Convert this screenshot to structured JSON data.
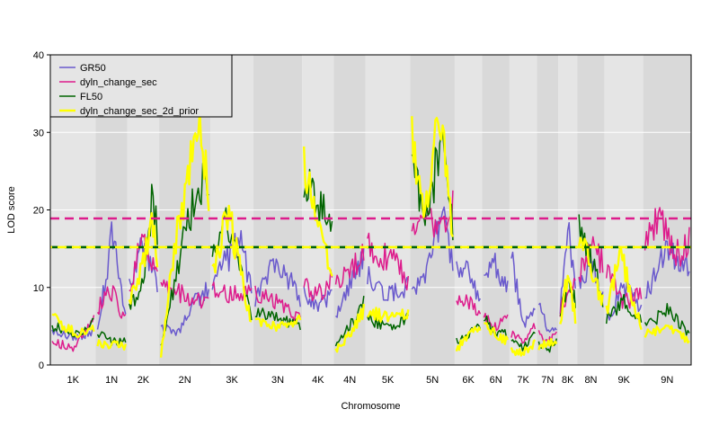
{
  "chart_data": {
    "type": "line",
    "title": "",
    "xlabel": "Chromosome",
    "ylabel": "LOD score",
    "ylim": [
      0,
      40
    ],
    "yticks": [
      0,
      10,
      20,
      30,
      40
    ],
    "grid": true,
    "legend_position": "top-left",
    "chromosomes": [
      "1K",
      "1N",
      "2K",
      "2N",
      "3K",
      "3N",
      "4K",
      "4N",
      "5K",
      "5N",
      "6K",
      "6N",
      "7K",
      "7N",
      "8K",
      "8N",
      "9K",
      "9N"
    ],
    "chromosome_widths": [
      53,
      37,
      37,
      60,
      50,
      57,
      37,
      37,
      52,
      52,
      32,
      32,
      32,
      25,
      22,
      32,
      45,
      56
    ],
    "thresholds": [
      {
        "series": "dyln_change_sec",
        "value": 18.9,
        "color": "#dd1c8c"
      },
      {
        "series": "FL50",
        "value": 15.2,
        "color": "#006400"
      },
      {
        "series": "dyln_change_sec_2d_prior",
        "value": 15.2,
        "color": "#ffff00"
      }
    ],
    "series": [
      {
        "name": "GR50",
        "color": "#6a5acd",
        "points": [
          [
            "1K",
            0,
            4.5
          ],
          [
            "1K",
            0.5,
            3.5
          ],
          [
            "1K",
            1,
            4.2
          ],
          [
            "1N",
            0,
            5
          ],
          [
            "1N",
            0.25,
            10
          ],
          [
            "1N",
            0.5,
            17
          ],
          [
            "1N",
            0.75,
            12
          ],
          [
            "1N",
            1,
            6
          ],
          [
            "2K",
            0,
            10
          ],
          [
            "2K",
            0.3,
            14
          ],
          [
            "2K",
            0.6,
            15.5
          ],
          [
            "2K",
            1,
            10
          ],
          [
            "2N",
            0,
            5
          ],
          [
            "2N",
            0.35,
            4
          ],
          [
            "2N",
            0.7,
            8
          ],
          [
            "2N",
            1,
            10
          ],
          [
            "3K",
            0,
            10
          ],
          [
            "3K",
            0.3,
            13
          ],
          [
            "3K",
            0.7,
            16
          ],
          [
            "3K",
            1,
            10
          ],
          [
            "3N",
            0,
            8
          ],
          [
            "3N",
            0.4,
            13
          ],
          [
            "3N",
            0.8,
            11
          ],
          [
            "3N",
            1,
            8
          ],
          [
            "4K",
            0,
            9
          ],
          [
            "4K",
            0.5,
            8
          ],
          [
            "4K",
            1,
            9
          ],
          [
            "4N",
            0,
            6
          ],
          [
            "4N",
            0.5,
            10
          ],
          [
            "4N",
            1,
            14
          ],
          [
            "5K",
            0,
            12
          ],
          [
            "5K",
            0.5,
            9
          ],
          [
            "5K",
            1,
            10
          ],
          [
            "5N",
            0,
            9
          ],
          [
            "5N",
            0.3,
            11
          ],
          [
            "5N",
            0.5,
            16
          ],
          [
            "5N",
            0.8,
            21
          ],
          [
            "5N",
            1,
            12
          ],
          [
            "6K",
            0,
            13
          ],
          [
            "6K",
            0.5,
            12
          ],
          [
            "6K",
            1,
            8
          ],
          [
            "6N",
            0,
            11
          ],
          [
            "6N",
            0.5,
            13
          ],
          [
            "6N",
            1,
            10
          ],
          [
            "7K",
            0,
            14
          ],
          [
            "7K",
            0.5,
            5
          ],
          [
            "7K",
            1,
            7
          ],
          [
            "7N",
            0,
            9
          ],
          [
            "7N",
            0.5,
            4
          ],
          [
            "7N",
            1,
            5
          ],
          [
            "8K",
            0,
            7
          ],
          [
            "8K",
            0.5,
            18
          ],
          [
            "8K",
            1,
            11
          ],
          [
            "8N",
            0,
            10
          ],
          [
            "8N",
            0.5,
            13
          ],
          [
            "8N",
            1,
            9
          ],
          [
            "9K",
            0,
            6
          ],
          [
            "9K",
            0.5,
            10
          ],
          [
            "9K",
            1,
            7
          ],
          [
            "9N",
            0,
            9
          ],
          [
            "9N",
            0.5,
            15
          ],
          [
            "9N",
            1,
            12
          ]
        ]
      },
      {
        "name": "dyln_change_sec",
        "color": "#dd1c8c",
        "points": [
          [
            "1K",
            0,
            3
          ],
          [
            "1K",
            0.5,
            2.2
          ],
          [
            "1K",
            1,
            6
          ],
          [
            "1N",
            0,
            7
          ],
          [
            "1N",
            0.4,
            10
          ],
          [
            "1N",
            0.7,
            8
          ],
          [
            "1N",
            1,
            6
          ],
          [
            "2K",
            0,
            9
          ],
          [
            "2K",
            0.4,
            16.5
          ],
          [
            "2K",
            0.7,
            14
          ],
          [
            "2K",
            1,
            12
          ],
          [
            "2N",
            0,
            10
          ],
          [
            "2N",
            0.5,
            9
          ],
          [
            "2N",
            1,
            8
          ],
          [
            "3K",
            0,
            10
          ],
          [
            "3K",
            0.5,
            9
          ],
          [
            "3K",
            1,
            10
          ],
          [
            "3N",
            0,
            9
          ],
          [
            "3N",
            0.5,
            8
          ],
          [
            "3N",
            1,
            6
          ],
          [
            "4K",
            0,
            10
          ],
          [
            "4K",
            0.5,
            9
          ],
          [
            "4K",
            1,
            11
          ],
          [
            "4N",
            0,
            10
          ],
          [
            "4N",
            0.5,
            12
          ],
          [
            "4N",
            1,
            14
          ],
          [
            "5K",
            0,
            15
          ],
          [
            "5K",
            0.5,
            14
          ],
          [
            "5K",
            1,
            11
          ],
          [
            "5N",
            0,
            16
          ],
          [
            "5N",
            0.4,
            18
          ],
          [
            "5N",
            0.7,
            19
          ],
          [
            "5N",
            1,
            20
          ],
          [
            "6K",
            0,
            9
          ],
          [
            "6K",
            0.5,
            8
          ],
          [
            "6K",
            1,
            7
          ],
          [
            "6N",
            0,
            6
          ],
          [
            "6N",
            0.5,
            5
          ],
          [
            "6N",
            1,
            6
          ],
          [
            "7K",
            0,
            4
          ],
          [
            "7K",
            0.5,
            3
          ],
          [
            "7K",
            1,
            5
          ],
          [
            "7N",
            0,
            4
          ],
          [
            "7N",
            0.5,
            3
          ],
          [
            "7N",
            1,
            4
          ],
          [
            "8K",
            0,
            7
          ],
          [
            "8K",
            0.5,
            9
          ],
          [
            "8K",
            1,
            10
          ],
          [
            "8N",
            0,
            11
          ],
          [
            "8N",
            0.5,
            16
          ],
          [
            "8N",
            1,
            13
          ],
          [
            "9K",
            0,
            12
          ],
          [
            "9K",
            0.5,
            8
          ],
          [
            "9K",
            1,
            9
          ],
          [
            "9N",
            0,
            15
          ],
          [
            "9N",
            0.3,
            19
          ],
          [
            "9N",
            0.7,
            14
          ],
          [
            "9N",
            1,
            16
          ]
        ]
      },
      {
        "name": "FL50",
        "color": "#006400",
        "points": [
          [
            "1K",
            0,
            5
          ],
          [
            "1K",
            0.6,
            4
          ],
          [
            "1K",
            1,
            5.5
          ],
          [
            "1N",
            0,
            4
          ],
          [
            "1N",
            0.5,
            3
          ],
          [
            "1N",
            1,
            3
          ],
          [
            "2K",
            0,
            7
          ],
          [
            "2K",
            0.5,
            11
          ],
          [
            "2K",
            0.8,
            21
          ],
          [
            "2K",
            1,
            17
          ],
          [
            "2N",
            0,
            2
          ],
          [
            "2N",
            0.4,
            14
          ],
          [
            "2N",
            0.8,
            24
          ],
          [
            "2N",
            1,
            24
          ],
          [
            "3K",
            0,
            14
          ],
          [
            "3K",
            0.4,
            19
          ],
          [
            "3K",
            1,
            6
          ],
          [
            "3N",
            0,
            7
          ],
          [
            "3N",
            0.5,
            6
          ],
          [
            "3N",
            1,
            5
          ],
          [
            "4K",
            0,
            24
          ],
          [
            "4K",
            0.5,
            21
          ],
          [
            "4K",
            1,
            18
          ],
          [
            "4N",
            0,
            3
          ],
          [
            "4N",
            0.5,
            5
          ],
          [
            "4N",
            1,
            8
          ],
          [
            "5K",
            0,
            6
          ],
          [
            "5K",
            0.5,
            5
          ],
          [
            "5K",
            1,
            6
          ],
          [
            "5N",
            0,
            26
          ],
          [
            "5N",
            0.4,
            19
          ],
          [
            "5N",
            0.7,
            29
          ],
          [
            "5N",
            1,
            17
          ],
          [
            "6K",
            0,
            3
          ],
          [
            "6K",
            0.5,
            4
          ],
          [
            "6K",
            1,
            5
          ],
          [
            "6N",
            0,
            6
          ],
          [
            "6N",
            0.5,
            4
          ],
          [
            "6N",
            1,
            4
          ],
          [
            "7K",
            0,
            3
          ],
          [
            "7K",
            0.5,
            2
          ],
          [
            "7K",
            1,
            4
          ],
          [
            "7N",
            0,
            3
          ],
          [
            "7N",
            0.5,
            2
          ],
          [
            "7N",
            1,
            3
          ],
          [
            "8K",
            0,
            6
          ],
          [
            "8K",
            0.5,
            11
          ],
          [
            "8K",
            1,
            8
          ],
          [
            "8N",
            0,
            18
          ],
          [
            "8N",
            0.5,
            14
          ],
          [
            "8N",
            1,
            8
          ],
          [
            "9K",
            0,
            6
          ],
          [
            "9K",
            0.5,
            8
          ],
          [
            "9K",
            1,
            6
          ],
          [
            "9N",
            0,
            5
          ],
          [
            "9N",
            0.5,
            7
          ],
          [
            "9N",
            1,
            4
          ]
        ]
      },
      {
        "name": "dyln_change_sec_2d_prior",
        "color": "#ffff00",
        "points": [
          [
            "1K",
            0,
            6
          ],
          [
            "1K",
            0.6,
            4
          ],
          [
            "1K",
            1,
            5
          ],
          [
            "1N",
            0,
            3
          ],
          [
            "1N",
            0.5,
            2.5
          ],
          [
            "1N",
            1,
            2.5
          ],
          [
            "2K",
            0,
            8
          ],
          [
            "2K",
            0.5,
            13
          ],
          [
            "2K",
            0.8,
            19
          ],
          [
            "2K",
            1,
            14
          ],
          [
            "2N",
            0,
            1
          ],
          [
            "2N",
            0.3,
            16
          ],
          [
            "2N",
            0.6,
            25
          ],
          [
            "2N",
            0.8,
            33
          ],
          [
            "2N",
            1,
            21
          ],
          [
            "3K",
            0,
            12
          ],
          [
            "3K",
            0.4,
            20
          ],
          [
            "3K",
            1,
            5
          ],
          [
            "3N",
            0,
            6
          ],
          [
            "3N",
            0.5,
            5
          ],
          [
            "3N",
            1,
            6
          ],
          [
            "4K",
            0,
            27.5
          ],
          [
            "4K",
            0.5,
            19
          ],
          [
            "4K",
            1,
            12
          ],
          [
            "4N",
            0,
            2
          ],
          [
            "4N",
            0.5,
            4
          ],
          [
            "4N",
            1,
            7
          ],
          [
            "5K",
            0,
            7
          ],
          [
            "5K",
            0.5,
            6
          ],
          [
            "5K",
            1,
            7
          ],
          [
            "5N",
            0,
            30
          ],
          [
            "5N",
            0.3,
            18
          ],
          [
            "5N",
            0.7,
            33
          ],
          [
            "5N",
            1,
            15
          ],
          [
            "6K",
            0,
            2
          ],
          [
            "6K",
            0.5,
            4
          ],
          [
            "6K",
            1,
            5
          ],
          [
            "6N",
            0,
            5
          ],
          [
            "6N",
            0.5,
            4
          ],
          [
            "6N",
            1,
            3
          ],
          [
            "7K",
            0,
            2
          ],
          [
            "7K",
            0.5,
            1.5
          ],
          [
            "7K",
            1,
            3
          ],
          [
            "7N",
            0,
            2
          ],
          [
            "7N",
            0.5,
            3
          ],
          [
            "7N",
            1,
            3
          ],
          [
            "8K",
            0,
            5
          ],
          [
            "8K",
            0.5,
            12
          ],
          [
            "8K",
            1,
            6
          ],
          [
            "8N",
            0,
            17
          ],
          [
            "8N",
            0.5,
            13
          ],
          [
            "8N",
            1,
            8
          ],
          [
            "9K",
            0,
            7
          ],
          [
            "9K",
            0.4,
            14
          ],
          [
            "9K",
            1,
            5
          ],
          [
            "9N",
            0,
            4
          ],
          [
            "9N",
            0.5,
            5
          ],
          [
            "9N",
            1,
            3
          ]
        ]
      }
    ]
  }
}
